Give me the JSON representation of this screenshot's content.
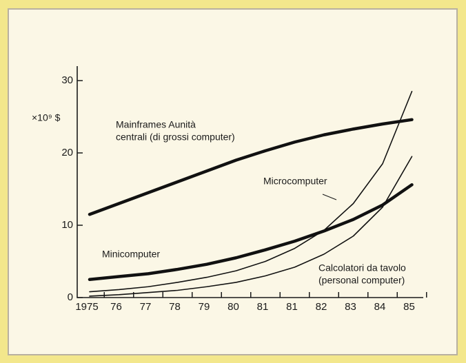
{
  "chart_data": {
    "type": "line",
    "y_unit": "×10⁹ $",
    "categories": [
      "1975",
      "76",
      "77",
      "78",
      "79",
      "80",
      "81",
      "81",
      "82",
      "83",
      "84",
      "85"
    ],
    "ylim": [
      0,
      32
    ],
    "yticks": [
      0,
      10,
      20,
      30
    ],
    "series": [
      {
        "label_lines": [
          "Mainframes Aunità",
          "centrali (di grossi computer)"
        ],
        "color": "#111111",
        "stroke_width": 4.5,
        "values": [
          11.5,
          13,
          14.5,
          16,
          17.5,
          19,
          20.3,
          21.5,
          22.5,
          23.3,
          24,
          24.6
        ]
      },
      {
        "label_lines": [
          "Minicomputer"
        ],
        "color": "#111111",
        "stroke_width": 4.5,
        "values": [
          2.5,
          2.9,
          3.3,
          3.9,
          4.6,
          5.5,
          6.6,
          7.8,
          9.2,
          10.8,
          12.8,
          15.6
        ]
      },
      {
        "label_lines": [
          "Microcomputer"
        ],
        "color": "#111111",
        "stroke_width": 1.6,
        "values": [
          0.8,
          1.1,
          1.5,
          2.1,
          2.8,
          3.7,
          5,
          6.8,
          9.3,
          13,
          18.5,
          28.5
        ]
      },
      {
        "label_lines": [
          "Calcolatori da tavolo",
          "(personal computer)"
        ],
        "color": "#111111",
        "stroke_width": 1.6,
        "values": [
          0.2,
          0.4,
          0.7,
          1.0,
          1.5,
          2.1,
          3,
          4.2,
          6,
          8.5,
          12.5,
          19.5
        ]
      }
    ]
  }
}
